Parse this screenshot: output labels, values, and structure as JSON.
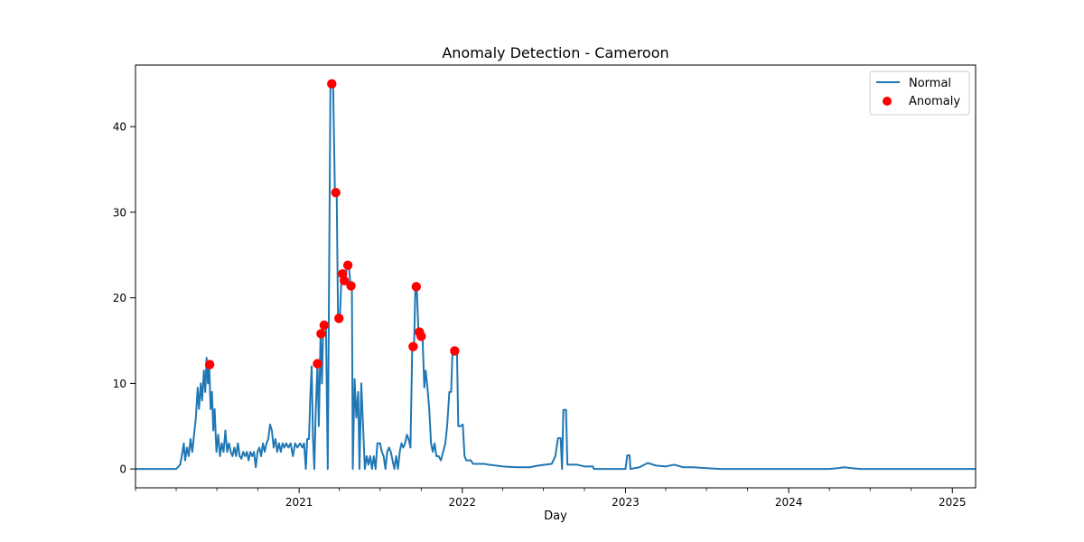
{
  "chart_data": {
    "type": "line",
    "title": "Anomaly Detection - Cameroon",
    "xlabel": "Day",
    "ylabel": "",
    "x_type": "date",
    "xlim": [
      "2020-01-01",
      "2025-02-22"
    ],
    "ylim": [
      -2.2,
      47.2
    ],
    "x_ticks": [
      "2021-01-01",
      "2022-01-01",
      "2023-01-01",
      "2024-01-01",
      "2025-01-01"
    ],
    "x_tick_labels": [
      "2021",
      "2022",
      "2023",
      "2024",
      "2025"
    ],
    "y_ticks": [
      0,
      10,
      20,
      30,
      40
    ],
    "y_tick_labels": [
      "0",
      "10",
      "20",
      "30",
      "40"
    ],
    "grid": false,
    "legend_position": "top-right",
    "colors": {
      "line": "#1f77b4",
      "anomaly": "#ff0000",
      "axes": "#000000"
    },
    "series": [
      {
        "name": "Normal",
        "type": "line",
        "points": [
          [
            "2020-01-01",
            0
          ],
          [
            "2020-04-01",
            0
          ],
          [
            "2020-04-10",
            0.5
          ],
          [
            "2020-04-15",
            2
          ],
          [
            "2020-04-18",
            3
          ],
          [
            "2020-04-21",
            1
          ],
          [
            "2020-04-25",
            2.5
          ],
          [
            "2020-04-29",
            1.5
          ],
          [
            "2020-05-03",
            3.5
          ],
          [
            "2020-05-07",
            2
          ],
          [
            "2020-05-11",
            4
          ],
          [
            "2020-05-15",
            6
          ],
          [
            "2020-05-19",
            9.5
          ],
          [
            "2020-05-22",
            7
          ],
          [
            "2020-05-26",
            10
          ],
          [
            "2020-05-29",
            8
          ],
          [
            "2020-06-02",
            11.5
          ],
          [
            "2020-06-05",
            9
          ],
          [
            "2020-06-08",
            13
          ],
          [
            "2020-06-11",
            10
          ],
          [
            "2020-06-14",
            12
          ],
          [
            "2020-06-17",
            7
          ],
          [
            "2020-06-20",
            9
          ],
          [
            "2020-06-23",
            4.5
          ],
          [
            "2020-06-26",
            7
          ],
          [
            "2020-06-30",
            2
          ],
          [
            "2020-07-04",
            4
          ],
          [
            "2020-07-08",
            1.5
          ],
          [
            "2020-07-12",
            3
          ],
          [
            "2020-07-16",
            2
          ],
          [
            "2020-07-20",
            4.5
          ],
          [
            "2020-07-24",
            2
          ],
          [
            "2020-07-28",
            3
          ],
          [
            "2020-08-01",
            2
          ],
          [
            "2020-08-05",
            1.5
          ],
          [
            "2020-08-09",
            2.5
          ],
          [
            "2020-08-13",
            1.5
          ],
          [
            "2020-08-17",
            3
          ],
          [
            "2020-08-21",
            1.5
          ],
          [
            "2020-08-25",
            1.2
          ],
          [
            "2020-08-29",
            2
          ],
          [
            "2020-09-02",
            1.5
          ],
          [
            "2020-09-06",
            2
          ],
          [
            "2020-09-10",
            1
          ],
          [
            "2020-09-14",
            2
          ],
          [
            "2020-09-18",
            1.5
          ],
          [
            "2020-09-22",
            2
          ],
          [
            "2020-09-26",
            0.2
          ],
          [
            "2020-09-30",
            2
          ],
          [
            "2020-10-04",
            2.5
          ],
          [
            "2020-10-08",
            1.5
          ],
          [
            "2020-10-12",
            3
          ],
          [
            "2020-10-16",
            2
          ],
          [
            "2020-10-20",
            3
          ],
          [
            "2020-10-24",
            3.5
          ],
          [
            "2020-10-28",
            5.2
          ],
          [
            "2020-11-01",
            4.5
          ],
          [
            "2020-11-05",
            2.5
          ],
          [
            "2020-11-09",
            3.5
          ],
          [
            "2020-11-13",
            2
          ],
          [
            "2020-11-17",
            3
          ],
          [
            "2020-11-21",
            2
          ],
          [
            "2020-11-25",
            3
          ],
          [
            "2020-11-29",
            2.5
          ],
          [
            "2020-12-03",
            3
          ],
          [
            "2020-12-08",
            2.5
          ],
          [
            "2020-12-13",
            3
          ],
          [
            "2020-12-18",
            1.5
          ],
          [
            "2020-12-23",
            3
          ],
          [
            "2020-12-28",
            2.5
          ],
          [
            "2021-01-03",
            3
          ],
          [
            "2021-01-08",
            2.5
          ],
          [
            "2021-01-12",
            3
          ],
          [
            "2021-01-16",
            0
          ],
          [
            "2021-01-19",
            3.5
          ],
          [
            "2021-01-23",
            3.5
          ],
          [
            "2021-01-26",
            8.5
          ],
          [
            "2021-01-29",
            12
          ],
          [
            "2021-02-01",
            3.5
          ],
          [
            "2021-02-04",
            0
          ],
          [
            "2021-02-07",
            6.5
          ],
          [
            "2021-02-11",
            12.3
          ],
          [
            "2021-02-14",
            5
          ],
          [
            "2021-02-18",
            15.8
          ],
          [
            "2021-02-21",
            10
          ],
          [
            "2021-02-24",
            16.8
          ],
          [
            "2021-03-02",
            16.8
          ],
          [
            "2021-03-06",
            0
          ],
          [
            "2021-03-12",
            45
          ],
          [
            "2021-03-18",
            45
          ],
          [
            "2021-03-22",
            32.3
          ],
          [
            "2021-03-26",
            32.3
          ],
          [
            "2021-03-29",
            17.6
          ],
          [
            "2021-04-02",
            17.6
          ],
          [
            "2021-04-06",
            22.8
          ],
          [
            "2021-04-10",
            22
          ],
          [
            "2021-04-14",
            22
          ],
          [
            "2021-04-18",
            23.8
          ],
          [
            "2021-04-22",
            23.8
          ],
          [
            "2021-04-26",
            21.4
          ],
          [
            "2021-04-29",
            21.4
          ],
          [
            "2021-05-01",
            0
          ],
          [
            "2021-05-05",
            10.5
          ],
          [
            "2021-05-09",
            6
          ],
          [
            "2021-05-13",
            9
          ],
          [
            "2021-05-16",
            0
          ],
          [
            "2021-05-20",
            10
          ],
          [
            "2021-05-24",
            5
          ],
          [
            "2021-05-28",
            0
          ],
          [
            "2021-06-01",
            1.5
          ],
          [
            "2021-06-05",
            0.5
          ],
          [
            "2021-06-09",
            1.5
          ],
          [
            "2021-06-13",
            0
          ],
          [
            "2021-06-17",
            1.5
          ],
          [
            "2021-06-21",
            0
          ],
          [
            "2021-06-25",
            3
          ],
          [
            "2021-07-01",
            3
          ],
          [
            "2021-07-05",
            2
          ],
          [
            "2021-07-09",
            1.5
          ],
          [
            "2021-07-13",
            0
          ],
          [
            "2021-07-17",
            2
          ],
          [
            "2021-07-21",
            2.5
          ],
          [
            "2021-07-25",
            2
          ],
          [
            "2021-07-29",
            1
          ],
          [
            "2021-08-02",
            0
          ],
          [
            "2021-08-06",
            1.5
          ],
          [
            "2021-08-10",
            0
          ],
          [
            "2021-08-14",
            2
          ],
          [
            "2021-08-18",
            3
          ],
          [
            "2021-08-22",
            2.5
          ],
          [
            "2021-08-26",
            3
          ],
          [
            "2021-08-30",
            4
          ],
          [
            "2021-09-03",
            3.5
          ],
          [
            "2021-09-07",
            2.5
          ],
          [
            "2021-09-11",
            14.3
          ],
          [
            "2021-09-15",
            14.3
          ],
          [
            "2021-09-18",
            21.3
          ],
          [
            "2021-09-21",
            21.3
          ],
          [
            "2021-09-25",
            15.8
          ],
          [
            "2021-09-28",
            16
          ],
          [
            "2021-10-01",
            15.5
          ],
          [
            "2021-10-04",
            15.5
          ],
          [
            "2021-10-08",
            9.5
          ],
          [
            "2021-10-11",
            11.5
          ],
          [
            "2021-10-15",
            9.5
          ],
          [
            "2021-10-19",
            7
          ],
          [
            "2021-10-23",
            3
          ],
          [
            "2021-10-27",
            2
          ],
          [
            "2021-10-31",
            3
          ],
          [
            "2021-11-04",
            1.5
          ],
          [
            "2021-11-09",
            1.5
          ],
          [
            "2021-11-14",
            1
          ],
          [
            "2021-11-19",
            2
          ],
          [
            "2021-11-24",
            3
          ],
          [
            "2021-11-28",
            5
          ],
          [
            "2021-12-03",
            9
          ],
          [
            "2021-12-07",
            9
          ],
          [
            "2021-12-10",
            13.8
          ],
          [
            "2021-12-20",
            13.8
          ],
          [
            "2021-12-23",
            5
          ],
          [
            "2021-12-28",
            5
          ],
          [
            "2022-01-02",
            5.2
          ],
          [
            "2022-01-06",
            1.5
          ],
          [
            "2022-01-10",
            1
          ],
          [
            "2022-01-20",
            1
          ],
          [
            "2022-01-25",
            0.6
          ],
          [
            "2022-02-20",
            0.6
          ],
          [
            "2022-03-01",
            0.5
          ],
          [
            "2022-04-01",
            0.3
          ],
          [
            "2022-05-01",
            0.2
          ],
          [
            "2022-06-01",
            0.2
          ],
          [
            "2022-06-20",
            0.4
          ],
          [
            "2022-07-20",
            0.6
          ],
          [
            "2022-07-28",
            1.5
          ],
          [
            "2022-08-03",
            3.6
          ],
          [
            "2022-08-09",
            3.6
          ],
          [
            "2022-08-12",
            0
          ],
          [
            "2022-08-15",
            6.9
          ],
          [
            "2022-08-21",
            6.9
          ],
          [
            "2022-08-24",
            0.5
          ],
          [
            "2022-09-15",
            0.5
          ],
          [
            "2022-10-01",
            0.3
          ],
          [
            "2022-10-20",
            0.3
          ],
          [
            "2022-10-22",
            0
          ],
          [
            "2023-01-01",
            0
          ],
          [
            "2023-01-05",
            1.6
          ],
          [
            "2023-01-10",
            1.6
          ],
          [
            "2023-01-12",
            0
          ],
          [
            "2023-02-01",
            0.2
          ],
          [
            "2023-02-20",
            0.7
          ],
          [
            "2023-03-10",
            0.4
          ],
          [
            "2023-04-01",
            0.3
          ],
          [
            "2023-04-20",
            0.5
          ],
          [
            "2023-05-10",
            0.2
          ],
          [
            "2023-06-01",
            0.2
          ],
          [
            "2023-07-01",
            0.1
          ],
          [
            "2023-08-01",
            0
          ],
          [
            "2023-10-01",
            0
          ],
          [
            "2024-01-01",
            0
          ],
          [
            "2024-04-01",
            0
          ],
          [
            "2024-04-20",
            0.1
          ],
          [
            "2024-05-05",
            0.2
          ],
          [
            "2024-05-20",
            0.1
          ],
          [
            "2024-06-10",
            0
          ],
          [
            "2024-09-01",
            0
          ],
          [
            "2025-02-22",
            0
          ]
        ]
      },
      {
        "name": "Anomaly",
        "type": "scatter",
        "points": [
          [
            "2020-06-15",
            12.2
          ],
          [
            "2021-02-11",
            12.3
          ],
          [
            "2021-02-19",
            15.8
          ],
          [
            "2021-02-26",
            16.8
          ],
          [
            "2021-03-15",
            45
          ],
          [
            "2021-03-24",
            32.3
          ],
          [
            "2021-03-31",
            17.6
          ],
          [
            "2021-04-08",
            22.8
          ],
          [
            "2021-04-12",
            22
          ],
          [
            "2021-04-20",
            23.8
          ],
          [
            "2021-04-27",
            21.4
          ],
          [
            "2021-09-13",
            14.3
          ],
          [
            "2021-09-20",
            21.3
          ],
          [
            "2021-09-27",
            16
          ],
          [
            "2021-10-01",
            15.5
          ],
          [
            "2021-12-15",
            13.8
          ]
        ]
      }
    ]
  }
}
